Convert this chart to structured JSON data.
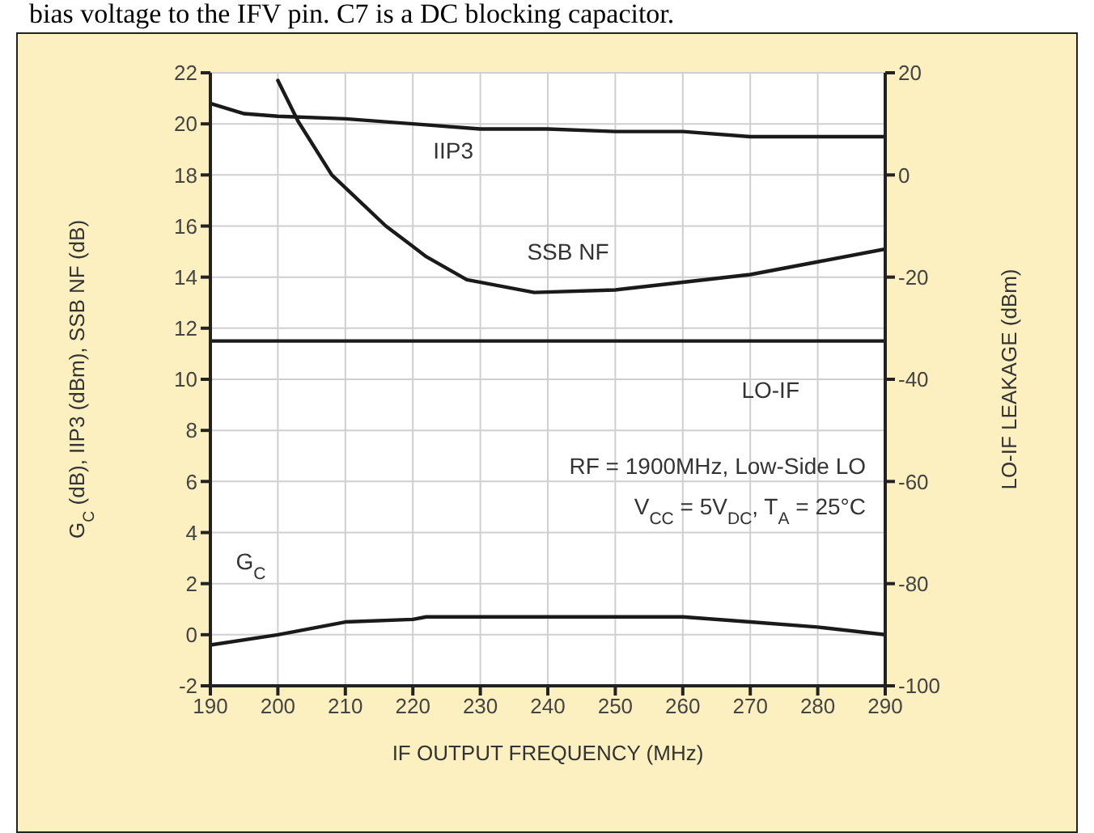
{
  "chart_data": {
    "type": "line",
    "xlabel": "IF OUTPUT FREQUENCY (MHz)",
    "ylabel": "G$_{C}$ (dB), IIP3 (dBm), SSB NF (dB)",
    "y2label": "LO-IF LEAKAGE (dBm)",
    "xlim": [
      190,
      290
    ],
    "xticks": [
      190,
      200,
      210,
      220,
      230,
      240,
      250,
      260,
      270,
      280,
      290
    ],
    "ylim": [
      -2,
      22
    ],
    "yticks": [
      -2,
      0,
      2,
      4,
      6,
      8,
      10,
      12,
      14,
      16,
      18,
      20,
      22
    ],
    "y2lim": [
      -100,
      20
    ],
    "y2ticks": [
      -100,
      -80,
      -60,
      -40,
      -20,
      0,
      20
    ],
    "grid": true,
    "legend": false,
    "marker": "none",
    "line_style": "solid",
    "series": [
      {
        "name": "IIP3",
        "color": "#1a1a1a",
        "x": [
          190,
          195,
          200,
          210,
          220,
          230,
          240,
          250,
          260,
          270,
          280,
          290
        ],
        "values": [
          20.8,
          20.4,
          20.3,
          20.2,
          20.0,
          19.8,
          19.8,
          19.7,
          19.7,
          19.5,
          19.5,
          19.5
        ]
      },
      {
        "name": "SSB NF",
        "color": "#1a1a1a",
        "x": [
          200,
          203,
          208,
          216,
          222,
          228,
          238,
          250,
          260,
          270,
          280,
          290
        ],
        "values": [
          21.7,
          20.1,
          18.0,
          16.0,
          14.8,
          13.9,
          13.4,
          13.5,
          13.8,
          14.1,
          14.6,
          15.1
        ]
      },
      {
        "name": "LO-IF",
        "color": "#1a1a1a",
        "axis": "y2",
        "x": [
          190,
          290
        ],
        "values": [
          -32.5,
          -32.5
        ]
      },
      {
        "name": "G$_{C}$",
        "color": "#1a1a1a",
        "x": [
          190,
          200,
          210,
          220,
          222,
          230,
          240,
          250,
          260,
          270,
          280,
          290
        ],
        "values": [
          -0.4,
          0.0,
          0.5,
          0.6,
          0.7,
          0.7,
          0.7,
          0.7,
          0.7,
          0.5,
          0.3,
          0.0
        ]
      }
    ],
    "annotations": [
      "bias voltage to the IFV pin. C7 is a DC blocking capacitor.",
      "RF = 1900MHz, Low-Side LO",
      "V$_{CC}$ = 5V$_{DC}$, T$_{A}$ = 25°C"
    ]
  }
}
